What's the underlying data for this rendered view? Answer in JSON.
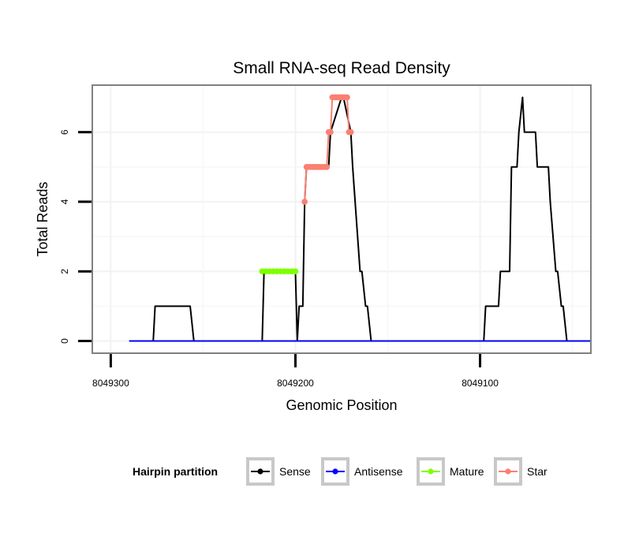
{
  "chart_data": {
    "type": "line",
    "title": "Small RNA-seq Read Density",
    "xlabel": "Genomic Position",
    "ylabel": "Total Reads",
    "x_reversed": true,
    "xlim": [
      8049310,
      8049040
    ],
    "ylim": [
      -0.35,
      7.35
    ],
    "x_ticks": [
      8049300,
      8049200,
      8049100
    ],
    "x_tick_labels": [
      "8049300",
      "8049200",
      "8049100"
    ],
    "y_ticks": [
      0,
      2,
      4,
      6
    ],
    "y_tick_labels": [
      "0",
      "2",
      "4",
      "6"
    ],
    "grid": true,
    "legend": {
      "title": "Hairpin partition",
      "placement": "bottom",
      "entries": [
        {
          "name": "Sense",
          "color": "#000000"
        },
        {
          "name": "Antisense",
          "color": "#0000ff"
        },
        {
          "name": "Mature",
          "color": "#7fff00"
        },
        {
          "name": "Star",
          "color": "#fa8072"
        }
      ]
    },
    "series": [
      {
        "name": "Sense",
        "color": "#000000",
        "x": [
          8049290,
          8049277,
          8049276,
          8049257,
          8049255,
          8049218,
          8049217,
          8049200,
          8049199,
          8049198,
          8049196,
          8049195,
          8049194,
          8049193,
          8049182,
          8049181,
          8049175,
          8049174,
          8049170,
          8049169,
          8049165,
          8049164,
          8049162,
          8049161,
          8049159,
          8049158,
          8049098,
          8049097,
          8049090,
          8049089,
          8049084,
          8049083,
          8049080,
          8049079,
          8049077,
          8049076,
          8049073,
          8049072,
          8049070,
          8049069,
          8049063,
          8049062,
          8049059,
          8049058,
          8049056,
          8049055,
          8049053,
          8049052,
          8049040
        ],
        "y": [
          0,
          0,
          1,
          1,
          0,
          0,
          2,
          2,
          0,
          1,
          1,
          4,
          5,
          5,
          5,
          6,
          7,
          7,
          6,
          5,
          2,
          2,
          1,
          1,
          0,
          0,
          0,
          1,
          1,
          2,
          2,
          5,
          5,
          6,
          7,
          6,
          6,
          6,
          6,
          5,
          5,
          4,
          2,
          2,
          1,
          1,
          0,
          0,
          0
        ]
      },
      {
        "name": "Antisense",
        "color": "#0000ff",
        "x": [
          8049290,
          8049040
        ],
        "y": [
          0,
          0
        ]
      },
      {
        "name": "Mature",
        "color": "#7fff00",
        "x": [
          8049218,
          8049216,
          8049214,
          8049212,
          8049210,
          8049208,
          8049206,
          8049204,
          8049202,
          8049200
        ],
        "y": [
          2,
          2,
          2,
          2,
          2,
          2,
          2,
          2,
          2,
          2
        ]
      },
      {
        "name": "Star",
        "color": "#fa8072",
        "x": [
          8049195,
          8049194,
          8049193,
          8049192,
          8049191,
          8049190,
          8049189,
          8049188,
          8049187,
          8049186,
          8049185,
          8049184,
          8049183,
          8049182,
          8049181,
          8049180,
          8049179,
          8049178,
          8049177,
          8049176,
          8049175,
          8049174,
          8049173,
          8049172,
          8049171,
          8049170
        ],
        "y": [
          4,
          5,
          5,
          5,
          5,
          5,
          5,
          5,
          5,
          5,
          5,
          5,
          5,
          6,
          6,
          7,
          7,
          7,
          7,
          7,
          7,
          7,
          7,
          7,
          6,
          6
        ]
      }
    ]
  }
}
